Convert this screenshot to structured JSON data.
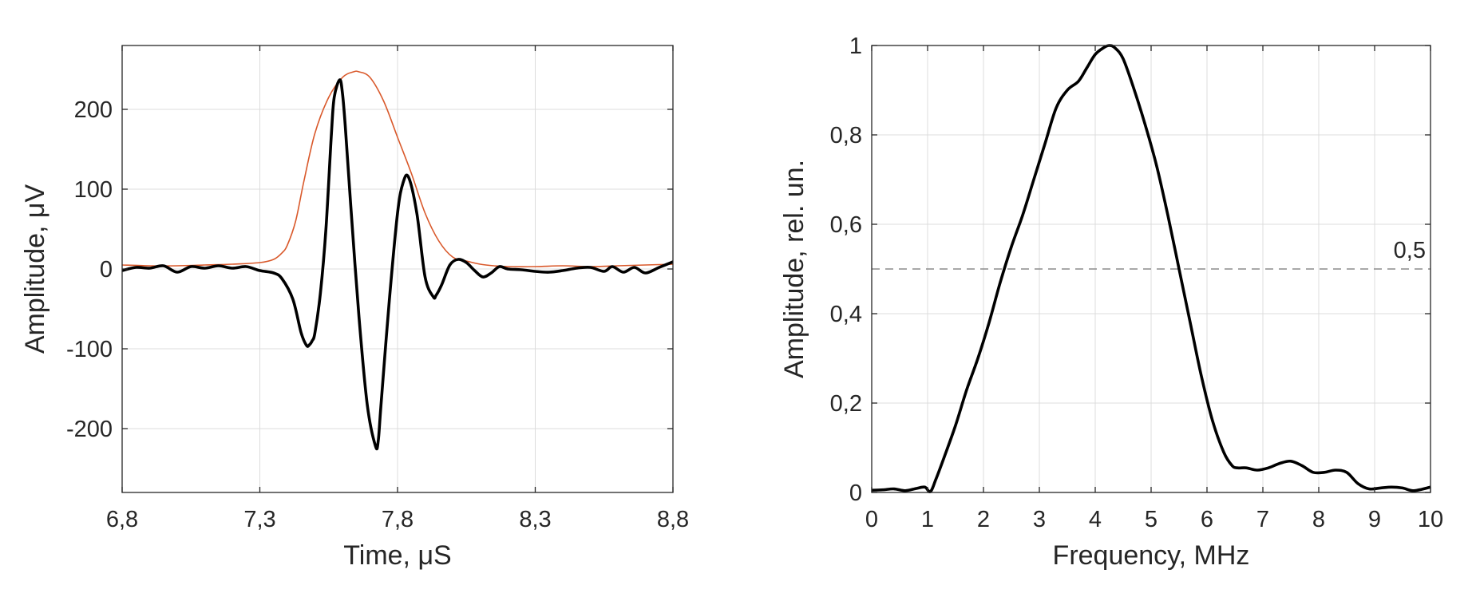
{
  "chart_data": [
    {
      "type": "line",
      "xlabel": "Time, μS",
      "ylabel": "Amplitude, μV",
      "xlim": [
        6.8,
        8.8
      ],
      "ylim": [
        -280,
        280
      ],
      "x_ticks": [
        6.8,
        7.3,
        7.8,
        8.3,
        8.8
      ],
      "x_tick_labels": [
        "6,8",
        "7,3",
        "7,8",
        "8,3",
        "8,8"
      ],
      "y_ticks": [
        -200,
        -100,
        0,
        100,
        200
      ],
      "y_tick_labels": [
        "-200",
        "-100",
        "0",
        "100",
        "200"
      ],
      "grid": true,
      "series": [
        {
          "color": "#000000",
          "x": [
            6.8,
            6.85,
            6.9,
            6.95,
            7.0,
            7.05,
            7.1,
            7.15,
            7.2,
            7.25,
            7.3,
            7.35,
            7.38,
            7.42,
            7.45,
            7.47,
            7.48,
            7.49,
            7.5,
            7.52,
            7.54,
            7.56,
            7.57,
            7.59,
            7.6,
            7.61,
            7.63,
            7.66,
            7.69,
            7.72,
            7.73,
            7.74,
            7.77,
            7.8,
            7.82,
            7.84,
            7.87,
            7.9,
            7.93,
            7.94,
            7.96,
            7.99,
            8.02,
            8.05,
            8.08,
            8.11,
            8.14,
            8.17,
            8.2,
            8.25,
            8.3,
            8.35,
            8.4,
            8.45,
            8.5,
            8.55,
            8.58,
            8.62,
            8.66,
            8.7,
            8.75,
            8.8
          ],
          "y": [
            -2,
            2,
            1,
            4,
            -4,
            3,
            1,
            4,
            1,
            3,
            -2,
            -5,
            -12,
            -38,
            -80,
            -96,
            -95,
            -90,
            -80,
            -30,
            50,
            170,
            215,
            237,
            220,
            180,
            80,
            -60,
            -170,
            -222,
            -215,
            -170,
            -40,
            70,
            108,
            115,
            70,
            -10,
            -35,
            -33,
            -20,
            5,
            12,
            8,
            -2,
            -10,
            -5,
            3,
            0,
            -1,
            -3,
            -4,
            -2,
            1,
            2,
            -3,
            3,
            -4,
            2,
            -5,
            2,
            9
          ]
        },
        {
          "color": "#D9592B",
          "x": [
            6.8,
            6.9,
            7.0,
            7.1,
            7.2,
            7.3,
            7.35,
            7.38,
            7.4,
            7.43,
            7.46,
            7.5,
            7.55,
            7.6,
            7.64,
            7.66,
            7.7,
            7.75,
            7.8,
            7.85,
            7.9,
            7.95,
            8.0,
            8.05,
            8.1,
            8.15,
            8.2,
            8.3,
            8.4,
            8.5,
            8.6,
            8.7,
            8.8
          ],
          "y": [
            5,
            4,
            4,
            5,
            6,
            8,
            12,
            20,
            30,
            60,
            110,
            170,
            215,
            240,
            247,
            247,
            240,
            210,
            165,
            120,
            70,
            35,
            15,
            10,
            6,
            4,
            3,
            3,
            4,
            3,
            4,
            5,
            6
          ]
        }
      ]
    },
    {
      "type": "line",
      "xlabel": "Frequency, MHz",
      "ylabel": "Amplitude, rel. un.",
      "xlim": [
        0,
        10
      ],
      "ylim": [
        0,
        1
      ],
      "x_ticks": [
        0,
        1,
        2,
        3,
        4,
        5,
        6,
        7,
        8,
        9,
        10
      ],
      "x_tick_labels": [
        "0",
        "1",
        "2",
        "3",
        "4",
        "5",
        "6",
        "7",
        "8",
        "9",
        "10"
      ],
      "y_ticks": [
        0,
        0.2,
        0.4,
        0.6,
        0.8,
        1
      ],
      "y_tick_labels": [
        "0",
        "0,2",
        "0,4",
        "0,6",
        "0,8",
        "1"
      ],
      "grid": true,
      "reference_line": {
        "y": 0.5,
        "label": "0,5",
        "style": "dashed",
        "color": "#8c8c8c"
      },
      "series": [
        {
          "color": "#000000",
          "x": [
            0.0,
            0.2,
            0.4,
            0.6,
            0.8,
            0.95,
            1.05,
            1.15,
            1.3,
            1.5,
            1.7,
            1.9,
            2.1,
            2.3,
            2.5,
            2.7,
            2.9,
            3.1,
            3.3,
            3.5,
            3.7,
            3.85,
            4.0,
            4.15,
            4.25,
            4.35,
            4.5,
            4.7,
            4.9,
            5.1,
            5.3,
            5.5,
            5.7,
            5.9,
            6.1,
            6.3,
            6.45,
            6.55,
            6.7,
            6.9,
            7.1,
            7.3,
            7.5,
            7.7,
            7.9,
            8.1,
            8.3,
            8.5,
            8.7,
            8.9,
            9.1,
            9.3,
            9.5,
            9.7,
            10.0
          ],
          "y": [
            0.005,
            0.006,
            0.008,
            0.004,
            0.009,
            0.012,
            0.002,
            0.03,
            0.08,
            0.15,
            0.23,
            0.3,
            0.38,
            0.47,
            0.55,
            0.62,
            0.7,
            0.78,
            0.86,
            0.9,
            0.92,
            0.95,
            0.98,
            0.995,
            1.0,
            0.995,
            0.97,
            0.9,
            0.82,
            0.73,
            0.62,
            0.5,
            0.38,
            0.26,
            0.16,
            0.09,
            0.06,
            0.055,
            0.055,
            0.05,
            0.055,
            0.065,
            0.07,
            0.06,
            0.045,
            0.045,
            0.05,
            0.045,
            0.02,
            0.008,
            0.01,
            0.012,
            0.01,
            0.004,
            0.012
          ]
        }
      ]
    }
  ]
}
